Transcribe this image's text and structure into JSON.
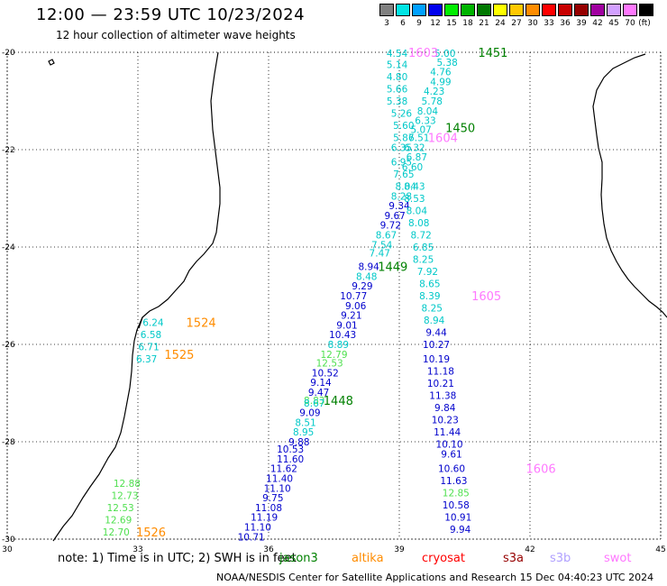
{
  "header": {
    "title": "12:00 — 23:59 UTC 10/23/2024",
    "subtitle": "12 hour collection of altimeter wave heights"
  },
  "legend": {
    "unit_label": "(ft)",
    "items": [
      {
        "label": "3",
        "color": "#808080"
      },
      {
        "label": "6",
        "color": "#00e5e5"
      },
      {
        "label": "9",
        "color": "#00a0ff"
      },
      {
        "label": "12",
        "color": "#0000ee"
      },
      {
        "label": "15",
        "color": "#00ee00"
      },
      {
        "label": "18",
        "color": "#00b400"
      },
      {
        "label": "21",
        "color": "#007800"
      },
      {
        "label": "24",
        "color": "#ffff00"
      },
      {
        "label": "27",
        "color": "#ffc800"
      },
      {
        "label": "30",
        "color": "#ff8c00"
      },
      {
        "label": "33",
        "color": "#ff0000"
      },
      {
        "label": "36",
        "color": "#c80000"
      },
      {
        "label": "39",
        "color": "#960000"
      },
      {
        "label": "42",
        "color": "#a000a0"
      },
      {
        "label": "45",
        "color": "#d2a0ff"
      },
      {
        "label": "70",
        "color": "#ff78ff"
      },
      {
        "label": "",
        "color": "#000000"
      }
    ]
  },
  "map": {
    "lon_ticks": [
      "30",
      "33",
      "36",
      "39",
      "42",
      "45"
    ],
    "lat_ticks": [
      "-20",
      "-22",
      "-24",
      "-26",
      "-28",
      "-30"
    ],
    "labels": [
      {
        "t": "4.54",
        "lon": 38.95,
        "lat": -20.02,
        "c": "#00c8c8"
      },
      {
        "t": "5.14",
        "lon": 38.95,
        "lat": -20.25,
        "c": "#00c8c8"
      },
      {
        "t": "4.80",
        "lon": 38.95,
        "lat": -20.5,
        "c": "#00c8c8"
      },
      {
        "t": "5.66",
        "lon": 38.95,
        "lat": -20.75,
        "c": "#00c8c8"
      },
      {
        "t": "5.38",
        "lon": 38.95,
        "lat": -21.0,
        "c": "#00c8c8"
      },
      {
        "t": "5.26",
        "lon": 39.05,
        "lat": -21.25,
        "c": "#00c8c8"
      },
      {
        "t": "5.60",
        "lon": 39.1,
        "lat": -21.5,
        "c": "#00c8c8"
      },
      {
        "t": "5.87",
        "lon": 39.1,
        "lat": -21.75,
        "c": "#00c8c8"
      },
      {
        "t": "6.51",
        "lon": 39.45,
        "lat": -21.75,
        "c": "#00c8c8"
      },
      {
        "t": "6.35",
        "lon": 39.05,
        "lat": -21.95,
        "c": "#00c8c8"
      },
      {
        "t": "6.32",
        "lon": 39.35,
        "lat": -21.95,
        "c": "#00c8c8"
      },
      {
        "t": "6.87",
        "lon": 39.4,
        "lat": -22.15,
        "c": "#00c8c8"
      },
      {
        "t": "6.95",
        "lon": 39.05,
        "lat": -22.25,
        "c": "#00c8c8"
      },
      {
        "t": "6.60",
        "lon": 39.3,
        "lat": -22.35,
        "c": "#00c8c8"
      },
      {
        "t": "7.65",
        "lon": 39.1,
        "lat": -22.5,
        "c": "#00c8c8"
      },
      {
        "t": "8.04",
        "lon": 39.15,
        "lat": -22.75,
        "c": "#00c8c8"
      },
      {
        "t": "8.43",
        "lon": 39.35,
        "lat": -22.75,
        "c": "#00c8c8"
      },
      {
        "t": "8.28",
        "lon": 39.05,
        "lat": -22.95,
        "c": "#00c8c8"
      },
      {
        "t": "8.53",
        "lon": 39.35,
        "lat": -23.0,
        "c": "#00c8c8"
      },
      {
        "t": "9.34",
        "lon": 39.0,
        "lat": -23.15,
        "c": "#0000cc"
      },
      {
        "t": "8.04",
        "lon": 39.4,
        "lat": -23.25,
        "c": "#00c8c8"
      },
      {
        "t": "9.67",
        "lon": 38.9,
        "lat": -23.35,
        "c": "#0000cc"
      },
      {
        "t": "9.72",
        "lon": 38.8,
        "lat": -23.55,
        "c": "#0000cc"
      },
      {
        "t": "8.08",
        "lon": 39.45,
        "lat": -23.5,
        "c": "#00c8c8"
      },
      {
        "t": "8.67",
        "lon": 38.7,
        "lat": -23.75,
        "c": "#00c8c8"
      },
      {
        "t": "8.72",
        "lon": 39.5,
        "lat": -23.75,
        "c": "#00c8c8"
      },
      {
        "t": "7.54",
        "lon": 38.6,
        "lat": -23.95,
        "c": "#00c8c8"
      },
      {
        "t": "6.85",
        "lon": 39.55,
        "lat": -24.0,
        "c": "#00c8c8"
      },
      {
        "t": "7.47",
        "lon": 38.55,
        "lat": -24.12,
        "c": "#00c8c8"
      },
      {
        "t": "8.25",
        "lon": 39.55,
        "lat": -24.25,
        "c": "#00c8c8"
      },
      {
        "t": "8.94",
        "lon": 38.3,
        "lat": -24.4,
        "c": "#0000cc"
      },
      {
        "t": "7.92",
        "lon": 39.65,
        "lat": -24.5,
        "c": "#00c8c8"
      },
      {
        "t": "8.48",
        "lon": 38.25,
        "lat": -24.6,
        "c": "#00c8c8"
      },
      {
        "t": "8.65",
        "lon": 39.7,
        "lat": -24.75,
        "c": "#00c8c8"
      },
      {
        "t": "9.29",
        "lon": 38.15,
        "lat": -24.8,
        "c": "#0000cc"
      },
      {
        "t": "8.39",
        "lon": 39.7,
        "lat": -25.0,
        "c": "#00c8c8"
      },
      {
        "t": "10.77",
        "lon": 37.95,
        "lat": -25.0,
        "c": "#0000cc"
      },
      {
        "t": "9.06",
        "lon": 38.0,
        "lat": -25.2,
        "c": "#0000cc"
      },
      {
        "t": "8.25",
        "lon": 39.75,
        "lat": -25.25,
        "c": "#00c8c8"
      },
      {
        "t": "9.21",
        "lon": 37.9,
        "lat": -25.4,
        "c": "#0000cc"
      },
      {
        "t": "8.94",
        "lon": 39.8,
        "lat": -25.5,
        "c": "#00c8c8"
      },
      {
        "t": "9.01",
        "lon": 37.8,
        "lat": -25.6,
        "c": "#0000cc"
      },
      {
        "t": "9.44",
        "lon": 39.85,
        "lat": -25.75,
        "c": "#0000cc"
      },
      {
        "t": "10.43",
        "lon": 37.7,
        "lat": -25.8,
        "c": "#0000cc"
      },
      {
        "t": "8.89",
        "lon": 37.6,
        "lat": -26.0,
        "c": "#00c8c8"
      },
      {
        "t": "10.27",
        "lon": 39.85,
        "lat": -26.0,
        "c": "#0000cc"
      },
      {
        "t": "12.79",
        "lon": 37.5,
        "lat": -26.2,
        "c": "#50e050"
      },
      {
        "t": "10.19",
        "lon": 39.85,
        "lat": -26.3,
        "c": "#0000cc"
      },
      {
        "t": "12.53",
        "lon": 37.4,
        "lat": -26.38,
        "c": "#50e050"
      },
      {
        "t": "10.52",
        "lon": 37.3,
        "lat": -26.58,
        "c": "#0000cc"
      },
      {
        "t": "11.18",
        "lon": 39.95,
        "lat": -26.55,
        "c": "#0000cc"
      },
      {
        "t": "9.14",
        "lon": 37.2,
        "lat": -26.78,
        "c": "#0000cc"
      },
      {
        "t": "10.21",
        "lon": 39.95,
        "lat": -26.8,
        "c": "#0000cc"
      },
      {
        "t": "9.47",
        "lon": 37.15,
        "lat": -26.98,
        "c": "#0000cc"
      },
      {
        "t": "11.38",
        "lon": 40.0,
        "lat": -27.05,
        "c": "#0000cc"
      },
      {
        "t": "8.83",
        "lon": 37.05,
        "lat": -27.15,
        "c": "#50e050"
      },
      {
        "t": "8.67",
        "lon": 37.05,
        "lat": -27.2,
        "c": "#00c8c8"
      },
      {
        "t": "9.84",
        "lon": 40.05,
        "lat": -27.3,
        "c": "#0000cc"
      },
      {
        "t": "9.09",
        "lon": 36.95,
        "lat": -27.4,
        "c": "#0000cc"
      },
      {
        "t": "10.23",
        "lon": 40.05,
        "lat": -27.55,
        "c": "#0000cc"
      },
      {
        "t": "8.51",
        "lon": 36.85,
        "lat": -27.6,
        "c": "#00c8c8"
      },
      {
        "t": "11.44",
        "lon": 40.1,
        "lat": -27.8,
        "c": "#0000cc"
      },
      {
        "t": "8.95",
        "lon": 36.8,
        "lat": -27.8,
        "c": "#00c8c8"
      },
      {
        "t": "9.88",
        "lon": 36.7,
        "lat": -28.0,
        "c": "#0000cc"
      },
      {
        "t": "10.10",
        "lon": 40.15,
        "lat": -28.05,
        "c": "#0000cc"
      },
      {
        "t": "10.53",
        "lon": 36.5,
        "lat": -28.15,
        "c": "#0000cc"
      },
      {
        "t": "9.61",
        "lon": 40.2,
        "lat": -28.25,
        "c": "#0000cc"
      },
      {
        "t": "11.60",
        "lon": 36.5,
        "lat": -28.35,
        "c": "#0000cc"
      },
      {
        "t": "10.60",
        "lon": 40.2,
        "lat": -28.55,
        "c": "#0000cc"
      },
      {
        "t": "11.62",
        "lon": 36.35,
        "lat": -28.55,
        "c": "#0000cc"
      },
      {
        "t": "11.63",
        "lon": 40.25,
        "lat": -28.8,
        "c": "#0000cc"
      },
      {
        "t": "11.40",
        "lon": 36.25,
        "lat": -28.75,
        "c": "#0000cc"
      },
      {
        "t": "12.85",
        "lon": 40.3,
        "lat": -29.05,
        "c": "#50e050"
      },
      {
        "t": "11.10",
        "lon": 36.2,
        "lat": -28.95,
        "c": "#0000cc"
      },
      {
        "t": "9.75",
        "lon": 36.1,
        "lat": -29.15,
        "c": "#0000cc"
      },
      {
        "t": "10.58",
        "lon": 40.3,
        "lat": -29.3,
        "c": "#0000cc"
      },
      {
        "t": "11.08",
        "lon": 36.0,
        "lat": -29.35,
        "c": "#0000cc"
      },
      {
        "t": "10.91",
        "lon": 40.35,
        "lat": -29.55,
        "c": "#0000cc"
      },
      {
        "t": "11.19",
        "lon": 35.9,
        "lat": -29.55,
        "c": "#0000cc"
      },
      {
        "t": "11.10",
        "lon": 35.75,
        "lat": -29.75,
        "c": "#0000cc"
      },
      {
        "t": "9.94",
        "lon": 40.4,
        "lat": -29.8,
        "c": "#0000cc"
      },
      {
        "t": "10.71",
        "lon": 35.6,
        "lat": -29.95,
        "c": "#0000cc"
      },
      {
        "t": "5.00",
        "lon": 40.05,
        "lat": -20.02,
        "c": "#00c8c8"
      },
      {
        "t": "5.38",
        "lon": 40.1,
        "lat": -20.2,
        "c": "#00c8c8"
      },
      {
        "t": "4.76",
        "lon": 39.95,
        "lat": -20.4,
        "c": "#00c8c8"
      },
      {
        "t": "4.99",
        "lon": 39.95,
        "lat": -20.6,
        "c": "#00c8c8"
      },
      {
        "t": "4.23",
        "lon": 39.8,
        "lat": -20.8,
        "c": "#00c8c8"
      },
      {
        "t": "5.78",
        "lon": 39.75,
        "lat": -21.0,
        "c": "#00c8c8"
      },
      {
        "t": "8.04",
        "lon": 39.65,
        "lat": -21.2,
        "c": "#00c8c8"
      },
      {
        "t": "6.33",
        "lon": 39.6,
        "lat": -21.4,
        "c": "#00c8c8"
      },
      {
        "t": "5.07",
        "lon": 39.5,
        "lat": -21.58,
        "c": "#00c8c8"
      },
      {
        "t": "6.24",
        "lon": 33.35,
        "lat": -25.55,
        "c": "#00c8c8"
      },
      {
        "t": "6.58",
        "lon": 33.3,
        "lat": -25.8,
        "c": "#00c8c8"
      },
      {
        "t": "6.71",
        "lon": 33.25,
        "lat": -26.05,
        "c": "#00c8c8"
      },
      {
        "t": "6.37",
        "lon": 33.2,
        "lat": -26.3,
        "c": "#00c8c8"
      },
      {
        "t": "12.88",
        "lon": 32.75,
        "lat": -28.85,
        "c": "#50e050"
      },
      {
        "t": "12.73",
        "lon": 32.7,
        "lat": -29.1,
        "c": "#50e050"
      },
      {
        "t": "12.53",
        "lon": 32.6,
        "lat": -29.35,
        "c": "#50e050"
      },
      {
        "t": "12.69",
        "lon": 32.55,
        "lat": -29.6,
        "c": "#50e050"
      },
      {
        "t": "12.70",
        "lon": 32.5,
        "lat": -29.85,
        "c": "#50e050"
      }
    ],
    "passes": [
      {
        "t": "1451",
        "lon": 41.15,
        "lat": -20.0,
        "c": "#008000"
      },
      {
        "t": "1450",
        "lon": 40.4,
        "lat": -21.55,
        "c": "#008000"
      },
      {
        "t": "1449",
        "lon": 38.85,
        "lat": -24.4,
        "c": "#008000"
      },
      {
        "t": "1448",
        "lon": 37.6,
        "lat": -27.15,
        "c": "#008000"
      },
      {
        "t": "1603",
        "lon": 39.55,
        "lat": -20.0,
        "c": "#ff78ff"
      },
      {
        "t": "1604",
        "lon": 40.0,
        "lat": -21.75,
        "c": "#ff78ff"
      },
      {
        "t": "1605",
        "lon": 41.0,
        "lat": -25.0,
        "c": "#ff78ff"
      },
      {
        "t": "1606",
        "lon": 42.25,
        "lat": -28.55,
        "c": "#ff78ff"
      },
      {
        "t": "1524",
        "lon": 34.45,
        "lat": -25.55,
        "c": "#ff8c00"
      },
      {
        "t": "1525",
        "lon": 33.95,
        "lat": -26.2,
        "c": "#ff8c00"
      },
      {
        "t": "1526",
        "lon": 33.3,
        "lat": -29.85,
        "c": "#ff8c00"
      }
    ]
  },
  "footer": {
    "note": "note: 1) Time is in UTC; 2) SWH is in feet",
    "satellites": [
      {
        "name": "jason3",
        "color": "#008000"
      },
      {
        "name": "altika",
        "color": "#ff8c00"
      },
      {
        "name": "cryosat",
        "color": "#ff0000"
      },
      {
        "name": "s3a",
        "color": "#960000"
      },
      {
        "name": "s3b",
        "color": "#b0a0ff"
      },
      {
        "name": "swot",
        "color": "#ff78ff"
      }
    ],
    "credit": "NOAA/NESDIS Center for Satellite Applications and Research   15 Dec 04:40:23 UTC 2024"
  }
}
